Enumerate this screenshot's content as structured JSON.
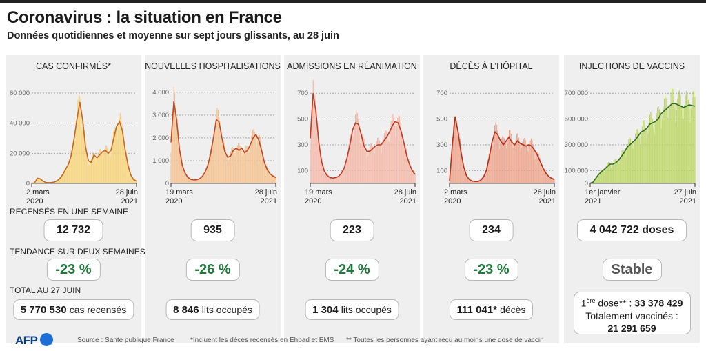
{
  "header": {
    "title": "Coronavirus : la situation en France",
    "subtitle": "Données quotidiennes et moyenne sur sept jours glissants, au 28 juin"
  },
  "sections": {
    "recenses": "RECENSÉS EN UNE SEMAINE",
    "tendance": "TENDANCE SUR DEUX SEMAINES",
    "total": "TOTAL AU 27 JUIN"
  },
  "panels": [
    {
      "title": "CAS CONFIRMÉS*",
      "color": "#f3c04d",
      "fill": "#f9dc8a",
      "line": "#c8651e",
      "weekly": "12 732",
      "trend": "-23 %",
      "total_value": "5 770 530",
      "total_unit": "cas recensés"
    },
    {
      "title": "NOUVELLES HOSPITALISATIONS",
      "color": "#f0a868",
      "fill": "#f7cda3",
      "line": "#c4481f",
      "weekly": "935",
      "trend": "-26 %",
      "total_value": "8 846",
      "total_unit": "lits occupés"
    },
    {
      "title": "ADMISSIONS EN RÉANIMATION",
      "color": "#f09a86",
      "fill": "#f6c7b8",
      "line": "#c23a22",
      "weekly": "223",
      "trend": "-24 %",
      "total_value": "1 304",
      "total_unit": "lits occupés"
    },
    {
      "title": "DÉCÈS À L'HÔPITAL",
      "color": "#e88466",
      "fill": "#f0b09a",
      "line": "#b8301b",
      "weekly": "234",
      "trend": "-23 %",
      "total_value": "111 041*",
      "total_unit": "décès"
    },
    {
      "title": "INJECTIONS DE VACCINS",
      "color": "#a5c832",
      "fill": "#c6dd7a",
      "line": "#2f6b1f",
      "weekly": "4 042 722 doses",
      "trend": "Stable",
      "vacc": {
        "first_prefix": "1",
        "first_sup": "ère",
        "first_label": " dose** : ",
        "first_value": "33 378 429",
        "full_label": "Totalement vaccinés :",
        "full_value": "21 291 659"
      }
    }
  ],
  "chart_data": [
    {
      "type": "area",
      "title": "CAS CONFIRMÉS*",
      "x_start_label": [
        "2 mars",
        "2020"
      ],
      "x_end_label": [
        "28 juin",
        "2021"
      ],
      "yticks": [
        0,
        20000,
        40000,
        60000
      ],
      "ytick_labels": [
        "0",
        "20 000",
        "40 000",
        "60 000"
      ],
      "ylim": [
        0,
        65000
      ],
      "series": [
        {
          "values": [
            0,
            300,
            3500,
            3000,
            1500,
            600,
            500,
            600,
            900,
            1800,
            3500,
            6000,
            9500,
            13000,
            19000,
            30000,
            43000,
            54000,
            42000,
            24000,
            15000,
            14000,
            19000,
            17000,
            19000,
            21000,
            22000,
            20000,
            22000,
            30000,
            38000,
            41000,
            35000,
            22000,
            12000,
            5500,
            2500,
            1500
          ]
        }
      ]
    },
    {
      "type": "area",
      "title": "NOUVELLES HOSPITALISATIONS",
      "x_start_label": [
        "19 mars",
        "2020"
      ],
      "x_end_label": [
        "28 juin",
        "2021"
      ],
      "yticks": [
        0,
        1000,
        2000,
        3000,
        4000
      ],
      "ytick_labels": [
        "0",
        "1 000",
        "2 000",
        "3 000",
        "4 000"
      ],
      "ylim": [
        0,
        4300
      ],
      "series": [
        {
          "values": [
            1800,
            3600,
            2800,
            1500,
            800,
            450,
            260,
            180,
            150,
            160,
            200,
            300,
            480,
            800,
            1300,
            2000,
            2800,
            2700,
            2000,
            1400,
            1150,
            1200,
            1450,
            1550,
            1450,
            1550,
            1350,
            1450,
            1700,
            2000,
            2150,
            1900,
            1450,
            900,
            600,
            420,
            320,
            260
          ]
        }
      ]
    },
    {
      "type": "area",
      "title": "ADMISSIONS EN RÉANIMATION",
      "x_start_label": [
        "19 mars",
        "2020"
      ],
      "x_end_label": [
        "28 juin",
        "2021"
      ],
      "yticks": [
        100,
        300,
        500,
        700
      ],
      "ytick_labels": [
        "100",
        "300",
        "500",
        "700"
      ],
      "ylim": [
        0,
        760
      ],
      "series": [
        {
          "values": [
            350,
            700,
            560,
            320,
            170,
            95,
            60,
            45,
            42,
            45,
            55,
            80,
            120,
            200,
            300,
            420,
            470,
            460,
            380,
            290,
            250,
            250,
            270,
            290,
            300,
            300,
            330,
            360,
            400,
            450,
            480,
            470,
            410,
            320,
            220,
            150,
            100,
            70
          ]
        }
      ]
    },
    {
      "type": "area",
      "title": "DÉCÈS À L'HÔPITAL",
      "x_start_label": [
        "2 mars",
        "2020"
      ],
      "x_end_label": [
        "28 juin",
        "2021"
      ],
      "yticks": [
        100,
        300,
        500,
        700
      ],
      "ytick_labels": [
        "100",
        "300",
        "500",
        "700"
      ],
      "ylim": [
        0,
        760
      ],
      "series": [
        {
          "values": [
            20,
            300,
            520,
            400,
            250,
            130,
            60,
            30,
            18,
            15,
            15,
            25,
            50,
            100,
            200,
            320,
            400,
            380,
            330,
            300,
            330,
            360,
            320,
            300,
            330,
            310,
            300,
            290,
            300,
            290,
            260,
            220,
            170,
            120,
            80,
            55,
            40,
            30
          ]
        }
      ]
    },
    {
      "type": "area",
      "title": "INJECTIONS DE VACCINS",
      "x_start_label": [
        "1er janvier",
        "2021"
      ],
      "x_end_label": [
        "27 juin",
        "2021"
      ],
      "yticks": [
        0,
        100000,
        300000,
        500000,
        700000
      ],
      "ytick_labels": [
        "0",
        "100 000",
        "300 000",
        "500 000",
        "700 000"
      ],
      "ylim": [
        0,
        760000
      ],
      "series": [
        {
          "values": [
            1000,
            10000,
            40000,
            70000,
            90000,
            110000,
            130000,
            150000,
            150000,
            160000,
            180000,
            210000,
            240000,
            280000,
            300000,
            320000,
            340000,
            370000,
            400000,
            410000,
            430000,
            460000,
            470000,
            480000,
            500000,
            540000,
            560000,
            580000,
            600000,
            620000,
            620000,
            610000,
            600000,
            590000,
            600000,
            610000,
            605000,
            600000
          ]
        }
      ]
    }
  ],
  "footer": {
    "logo": "AFP",
    "source": "Source : Santé publique France",
    "note1": "*Incluent les décès recensés en Ehpad et EMS",
    "note2": "** Toutes les personnes ayant reçu au moins une dose de vaccin"
  }
}
